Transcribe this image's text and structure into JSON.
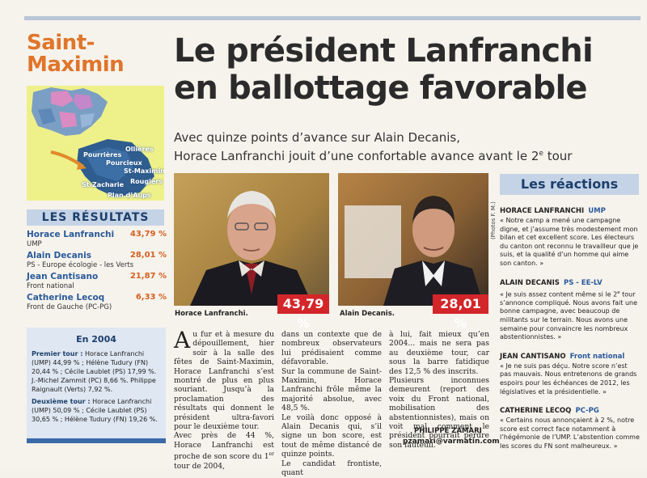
{
  "section": {
    "city": "Saint-Maximin"
  },
  "headline": "Le président Lanfranchi en ballottage favorable",
  "subhead": {
    "line1": "Avec quinze points d’avance sur Alain Decanis,",
    "line2_pre": "Horace Lanfranchi jouit d’une confortable avance avant le 2",
    "line2_sup": "e",
    "line2_post": " tour"
  },
  "map": {
    "towns": [
      "Ollières",
      "Pourrières",
      "Pourcieux",
      "St-Maximin",
      "Rougiers",
      "St-Zacharie",
      "Plan d’Aups"
    ]
  },
  "results": {
    "title": "LES RÉSULTATS",
    "candidates": [
      {
        "name": "Horace Lanfranchi",
        "party": "UMP",
        "percent": "43,79 %"
      },
      {
        "name": "Alain Decanis",
        "party": "PS - Europe écologie - les Verts",
        "percent": "28,01 %"
      },
      {
        "name": "Jean Cantisano",
        "party": "Front national",
        "percent": "21,87 %"
      },
      {
        "name": "Catherine Lecoq",
        "party": "Front de Gauche (PC-PG)",
        "percent": "6,33 %"
      }
    ]
  },
  "history": {
    "title": "En 2004",
    "round1_label": "Premier tour :",
    "round1_text": " Horace Lanfranchi (UMP) 44,99 % ; Hélène Tudury (FN) 20,44 % ; Cécile Laublet (PS) 17,99 %. J.-Michel Zammit (PC) 8,66 %. Philippe Raignault (Verts) 7,92 %.",
    "round2_label": "Deuxième tour :",
    "round2_text": " Horace Lanfranchi (UMP) 50,09 % ; Cécile Laublet (PS) 30,65 % ; Hélène Tudury (FN) 19,26 %."
  },
  "photos": {
    "credit": "(Photos F. M.)",
    "left": {
      "caption": "Horace Lanfranchi.",
      "percent": "43,79 %"
    },
    "right": {
      "caption": "Alain Decanis.",
      "percent": "28,01 %"
    }
  },
  "article": {
    "col1_drop": "A",
    "col1_a": "u fur et à mesure du dépouillement, hier soir à la salle des fêtes de Saint-Maximin, Horace Lanfranchi s’est montré de plus en plus souriant. Jusqu’à la proclamation des résultats qui donnent le président ultra-favori pour le deuxième tour.",
    "col1_b_pre": "Avec près de 44 %, Horace Lanfranchi est proche de son score du 1",
    "col1_b_sup": "er",
    "col1_b_post": " tour de 2004,",
    "col2_a": "dans un contexte que de nombreux observateurs lui prédisaient comme défavorable.",
    "col2_b": "Sur la commune de Saint-Maximin, Horace Lanfranchi frôle même la majorité absolue, avec 48,5 %.",
    "col2_c": "Le voilà donc opposé à Alain Decanis qui, s’il signe un bon score, est tout de même distancé de quinze points.",
    "col2_d": "Le candidat frontiste, quant",
    "col3_a": "à lui, fait mieux qu’en 2004... mais ne sera pas au deuxième tour, car sous la barre fatidique des 12,5 % des inscrits.",
    "col3_b": "Plusieurs inconnues demeurent (report des voix du Front national, mobilisation des abstentionnistes), mais on voit mal comment le président pourrait perdre son fauteuil.",
    "signature": "PHILIPPE ZAMARI",
    "email": "pzamari@varmatin.com"
  },
  "reactions": {
    "title": "Les réactions",
    "items": [
      {
        "who": "HORACE LANFRANCHI",
        "party": "UMP",
        "quote": "« Notre camp a mené une campagne digne, et j’assume très modestement mon bilan et cet excellent score. Les électeurs du canton ont reconnu le travailleur que je suis, et la qualité d’un homme qui aime son canton. »"
      },
      {
        "who": "ALAIN DECANIS",
        "party": "PS - EE-LV",
        "quote_pre": "« Je suis assez content même si le 2",
        "quote_sup": "e",
        "quote_post": " tour s’annonce compliqué. Nous avons fait une bonne campagne, avec beaucoup de militants sur le terrain. Nous avons une semaine pour convaincre les nombreux abstentionnistes. »"
      },
      {
        "who": "JEAN CANTISANO",
        "party": "Front national",
        "quote": "« Je ne suis pas déçu. Notre score n’est pas mauvais. Nous entretenons de grands espoirs pour les échéances de 2012, les législatives et la présidentielle. »"
      },
      {
        "who": "CATHERINE LECOQ",
        "party": "PC-PG",
        "quote": "« Certains nous annonçaient à 2 %, notre score est correct face notamment à l’hégémonie de l’UMP. L’abstention comme les scores du FN sont malheureux. »"
      }
    ]
  },
  "colors": {
    "accent_orange": "#e0752b",
    "accent_blue": "#2a5a9a",
    "accent_red": "#d3262a",
    "box_blue": "#c5d3e6"
  }
}
